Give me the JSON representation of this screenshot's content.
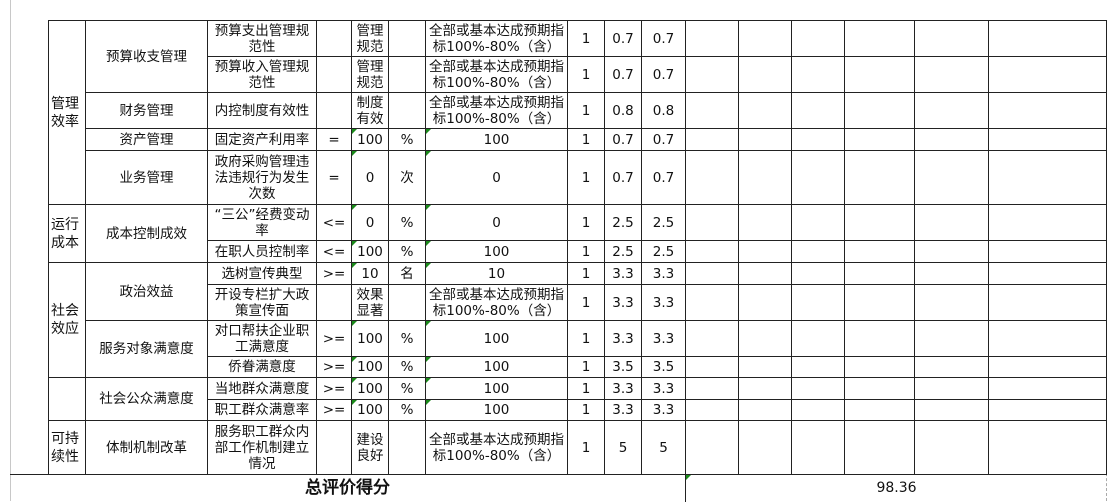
{
  "groups": [
    {
      "category": "管理效率",
      "items": [
        {
          "name": "预算收支管理",
          "indicators": [
            {
              "indicator": "预算支出管理规范性",
              "op": "",
              "target": "管理规范",
              "unit": "",
              "standard": "全部或基本达成预期指标100%-80%（含）",
              "weight": "1",
              "score_a": "0.7",
              "score_b": "0.7"
            },
            {
              "indicator": "预算收入管理规范性",
              "op": "",
              "target": "管理规范",
              "unit": "",
              "standard": "全部或基本达成预期指标100%-80%（含）",
              "weight": "1",
              "score_a": "0.7",
              "score_b": "0.7"
            }
          ]
        },
        {
          "name": "财务管理",
          "indicators": [
            {
              "indicator": "内控制度有效性",
              "op": "",
              "target": "制度有效",
              "unit": "",
              "standard": "全部或基本达成预期指标100%-80%（含）",
              "weight": "1",
              "score_a": "0.8",
              "score_b": "0.8"
            }
          ]
        },
        {
          "name": "资产管理",
          "indicators": [
            {
              "indicator": "固定资产利用率",
              "op": "=",
              "target": "100",
              "unit": "%",
              "standard": "100",
              "weight": "1",
              "score_a": "0.7",
              "score_b": "0.7"
            }
          ]
        },
        {
          "name": "业务管理",
          "indicators": [
            {
              "indicator": "政府采购管理违法违规行为发生次数",
              "op": "=",
              "target": "0",
              "unit": "次",
              "standard": "0",
              "weight": "1",
              "score_a": "0.7",
              "score_b": "0.7"
            }
          ]
        }
      ]
    },
    {
      "category": "运行成本",
      "items": [
        {
          "name": "成本控制成效",
          "indicators": [
            {
              "indicator": "“三公”经费变动率",
              "op": "<=",
              "target": "0",
              "unit": "%",
              "standard": "0",
              "weight": "1",
              "score_a": "2.5",
              "score_b": "2.5"
            },
            {
              "indicator": "在职人员控制率",
              "op": "<=",
              "target": "100",
              "unit": "%",
              "standard": "100",
              "weight": "1",
              "score_a": "2.5",
              "score_b": "2.5"
            }
          ]
        }
      ]
    },
    {
      "category": "社会效应",
      "items": [
        {
          "name": "政治效益",
          "indicators": [
            {
              "indicator": "选树宣传典型",
              "op": ">=",
              "target": "10",
              "unit": "名",
              "standard": "10",
              "weight": "1",
              "score_a": "3.3",
              "score_b": "3.3"
            },
            {
              "indicator": "开设专栏扩大政策宣传面",
              "op": "",
              "target": "效果显著",
              "unit": "",
              "standard": "全部或基本达成预期指标100%-80%（含）",
              "weight": "1",
              "score_a": "3.3",
              "score_b": "3.3"
            }
          ]
        },
        {
          "name": "服务对象满意度",
          "indicators": [
            {
              "indicator": "对口帮扶企业职工满意度",
              "op": ">=",
              "target": "100",
              "unit": "%",
              "standard": "100",
              "weight": "1",
              "score_a": "3.3",
              "score_b": "3.3"
            },
            {
              "indicator": "侨眷满意度",
              "op": ">=",
              "target": "100",
              "unit": "%",
              "standard": "100",
              "weight": "1",
              "score_a": "3.5",
              "score_b": "3.5"
            }
          ]
        }
      ]
    },
    {
      "category": "",
      "items": [
        {
          "name": "社会公众满意度",
          "indicators": [
            {
              "indicator": "当地群众满意度",
              "op": ">=",
              "target": "100",
              "unit": "%",
              "standard": "100",
              "weight": "1",
              "score_a": "3.3",
              "score_b": "3.3"
            },
            {
              "indicator": "职工群众满意率",
              "op": ">=",
              "target": "100",
              "unit": "%",
              "standard": "100",
              "weight": "1",
              "score_a": "3.3",
              "score_b": "3.3"
            }
          ]
        }
      ]
    },
    {
      "category": "可持续性",
      "items": [
        {
          "name": "体制机制改革",
          "indicators": [
            {
              "indicator": "服务职工群众内部工作机制建立情况",
              "op": "",
              "target": "建设良好",
              "unit": "",
              "standard": "全部或基本达成预期指标100%-80%（含）",
              "weight": "1",
              "score_a": "5",
              "score_b": "5"
            }
          ]
        }
      ]
    }
  ],
  "total": {
    "label": "总评价得分",
    "value": "98.36"
  },
  "colors": {
    "border": "#222222",
    "marker": "#1a8a1a",
    "page_break": "#999999"
  }
}
